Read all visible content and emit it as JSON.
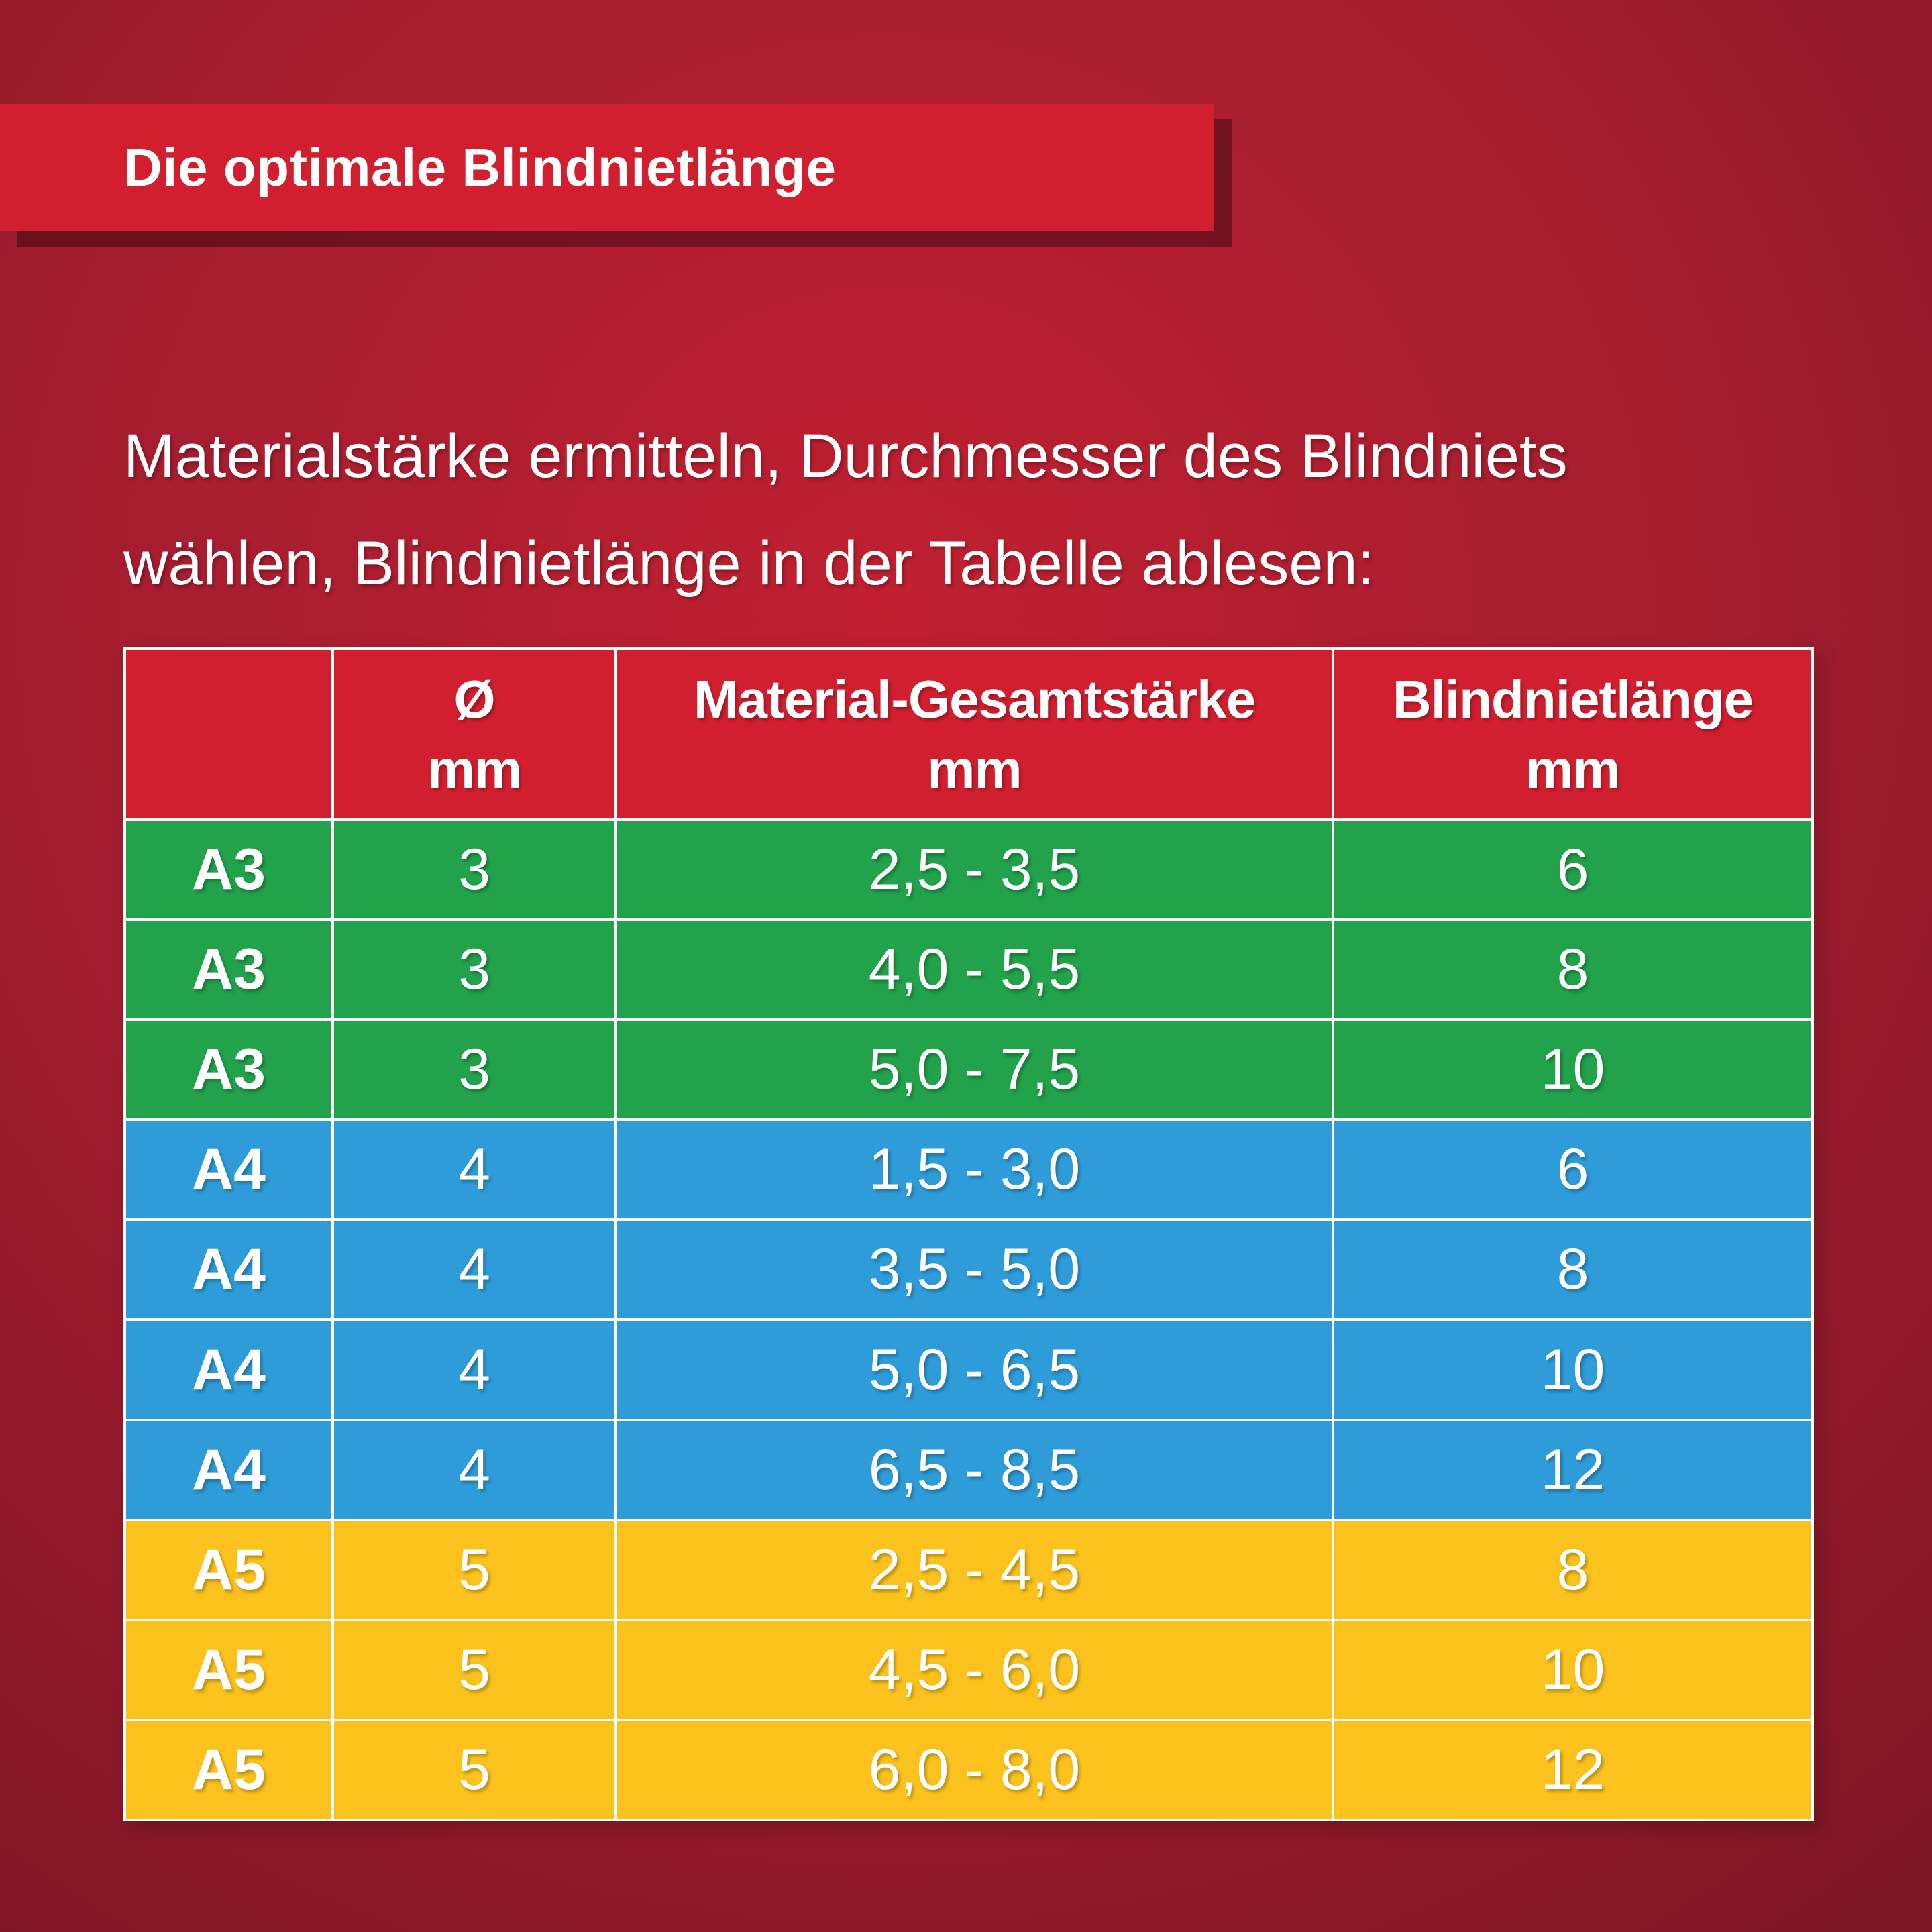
{
  "title": {
    "text": "Die optimale Blindnietlänge"
  },
  "intro": {
    "line1": "Materialstärke ermitteln, Durchmesser des Blindniets",
    "line2": "wählen, Blindnietlänge in der Tabelle ablesen:"
  },
  "table_header": {
    "col1": "",
    "col2": [
      "Ø",
      "mm"
    ],
    "col3": [
      "Material-Gesamtstärke",
      "mm"
    ],
    "col4": [
      "Blindnietlänge",
      "mm"
    ]
  },
  "chart_data": {
    "type": "table",
    "title": "Die optimale Blindnietlänge",
    "columns": [
      "",
      "Ø mm",
      "Material-Gesamtstärke mm",
      "Blindnietlänge mm"
    ],
    "rows": [
      {
        "type": "A3",
        "diameter_mm": "3",
        "material_total_mm": "2,5 - 3,5",
        "rivet_length_mm": "6",
        "group_color": "green"
      },
      {
        "type": "A3",
        "diameter_mm": "3",
        "material_total_mm": "4,0 - 5,5",
        "rivet_length_mm": "8",
        "group_color": "green"
      },
      {
        "type": "A3",
        "diameter_mm": "3",
        "material_total_mm": "5,0 - 7,5",
        "rivet_length_mm": "10",
        "group_color": "green"
      },
      {
        "type": "A4",
        "diameter_mm": "4",
        "material_total_mm": "1,5 - 3,0",
        "rivet_length_mm": "6",
        "group_color": "blue"
      },
      {
        "type": "A4",
        "diameter_mm": "4",
        "material_total_mm": "3,5 - 5,0",
        "rivet_length_mm": "8",
        "group_color": "blue"
      },
      {
        "type": "A4",
        "diameter_mm": "4",
        "material_total_mm": "5,0 - 6,5",
        "rivet_length_mm": "10",
        "group_color": "blue"
      },
      {
        "type": "A4",
        "diameter_mm": "4",
        "material_total_mm": "6,5 - 8,5",
        "rivet_length_mm": "12",
        "group_color": "blue"
      },
      {
        "type": "A5",
        "diameter_mm": "5",
        "material_total_mm": "2,5 - 4,5",
        "rivet_length_mm": "8",
        "group_color": "yellow"
      },
      {
        "type": "A5",
        "diameter_mm": "5",
        "material_total_mm": "4,5 - 6,0",
        "rivet_length_mm": "10",
        "group_color": "yellow"
      },
      {
        "type": "A5",
        "diameter_mm": "5",
        "material_total_mm": "6,0 - 8,0",
        "rivet_length_mm": "12",
        "group_color": "yellow"
      }
    ]
  },
  "colors": {
    "banner_red": "#d21f30",
    "header_red": "#d21f30",
    "green": "#21a24b",
    "blue": "#2e9cd9",
    "yellow": "#fbc21d",
    "table_border": "#ffffff",
    "text": "#ffffff",
    "bg_center": "#c12031",
    "bg_mid": "#a21d2f",
    "bg_edge": "#7c1524"
  }
}
